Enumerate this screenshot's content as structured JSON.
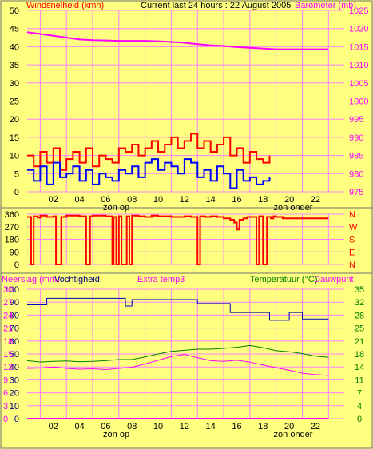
{
  "header": {
    "wind_label": "Windsnelheid (kmh)",
    "title": "Current last 24 hours : 22 August 2005",
    "baro_label": "Barometer (mb)"
  },
  "bottom_header": {
    "rain_label": "Neerslag (mm)",
    "humidity_label": "Vochtigheid",
    "extra_label": "Extra temp3",
    "temp_label": "Temperatuur (°C)",
    "dew_label": "Dauwpunt"
  },
  "x_axis": {
    "ticks": [
      "02",
      "04",
      "06",
      "08",
      "10",
      "12",
      "14",
      "16",
      "18",
      "20",
      "22"
    ],
    "sunrise_label": "zon op",
    "sunset_label": "zon onder"
  },
  "colors": {
    "background": "#ffff80",
    "grid": "#ff80ff",
    "wind_gust": "#ff0000",
    "wind_avg": "#0000ff",
    "barometer": "#ff00ff",
    "wind_dir": "#ff0000",
    "humidity": "#0000c0",
    "temperature": "#008000",
    "dewpoint": "#ff00ff",
    "rain": "#ff00ff"
  },
  "chart_data": [
    {
      "type": "line",
      "title": "Current last 24 hours : 22 August 2005",
      "xlabel": "",
      "ylabel": "Windsnelheid (kmh)",
      "x_ticks": [
        "02",
        "04",
        "06",
        "08",
        "10",
        "12",
        "14",
        "16",
        "18",
        "20",
        "22"
      ],
      "ylim": [
        0,
        50
      ],
      "y_ticks": [
        "0",
        "5",
        "10",
        "15",
        "20",
        "25",
        "30",
        "35",
        "40",
        "45",
        "50"
      ],
      "y2_label": "Barometer (mb)",
      "y2lim": [
        975,
        1025
      ],
      "y2_ticks": [
        "975",
        "980",
        "985",
        "990",
        "995",
        "1000",
        "1005",
        "1010",
        "1015",
        "1020",
        "1025"
      ],
      "series": [
        {
          "axis": "y2",
          "x": [
            0,
            1,
            2,
            3,
            4,
            5,
            6,
            7,
            8,
            9,
            10,
            11,
            12,
            13,
            14,
            15,
            16,
            17,
            18,
            19,
            20,
            21,
            22,
            23
          ],
          "values": [
            1019,
            1018.5,
            1018,
            1017.5,
            1017,
            1016.8,
            1016.7,
            1016.6,
            1016.6,
            1016.6,
            1016.5,
            1016.3,
            1016.1,
            1015.7,
            1015.4,
            1015.2,
            1014.9,
            1014.7,
            1014.5,
            1014.3,
            1014.3,
            1014.3,
            1014.3,
            1014.3
          ]
        },
        {
          "x": [
            0,
            0.5,
            1,
            1.5,
            2,
            2.5,
            3,
            3.5,
            4,
            4.5,
            5,
            5.5,
            6,
            6.5,
            7,
            7.5,
            8,
            8.5,
            9,
            9.5,
            10,
            10.5,
            11,
            11.5,
            12,
            12.5,
            13,
            13.5,
            14,
            14.5,
            15,
            15.5,
            16,
            16.5,
            17,
            17.5,
            18,
            18.5
          ],
          "values": [
            10,
            7,
            11,
            8,
            12,
            6,
            9,
            11,
            8,
            12,
            7,
            10,
            9,
            8,
            12,
            11,
            13,
            10,
            12,
            14,
            11,
            13,
            15,
            12,
            14,
            16,
            12,
            14,
            11,
            13,
            15,
            10,
            12,
            8,
            11,
            9,
            8,
            10
          ]
        },
        {
          "x": [
            0,
            0.5,
            1,
            1.5,
            2,
            2.5,
            3,
            3.5,
            4,
            4.5,
            5,
            5.5,
            6,
            6.5,
            7,
            7.5,
            8,
            8.5,
            9,
            9.5,
            10,
            10.5,
            11,
            11.5,
            12,
            12.5,
            13,
            13.5,
            14,
            14.5,
            15,
            15.5,
            16,
            16.5,
            17,
            17.5,
            18,
            18.5
          ],
          "values": [
            6,
            3,
            7,
            2,
            8,
            4,
            5,
            7,
            3,
            6,
            2,
            5,
            4,
            3,
            6,
            5,
            7,
            4,
            8,
            9,
            6,
            8,
            7,
            5,
            9,
            8,
            4,
            6,
            3,
            7,
            5,
            1,
            6,
            3,
            4,
            2,
            3,
            4
          ]
        }
      ]
    },
    {
      "type": "line",
      "xlabel": "",
      "ylabel": "",
      "ylim": [
        0,
        360
      ],
      "y_ticks": [
        "0",
        "90",
        "180",
        "270",
        "360"
      ],
      "y2_ticks": [
        "N",
        "E",
        "S",
        "W",
        "N"
      ],
      "series": [
        {
          "x": [
            0,
            0.3,
            0.5,
            0.8,
            1,
            1.5,
            2,
            2.2,
            2.4,
            2.6,
            3,
            4,
            4.5,
            4.6,
            4.8,
            5,
            6,
            6.5,
            6.6,
            6.8,
            7,
            7.2,
            7.4,
            7.6,
            7.8,
            8,
            8.5,
            9,
            9.5,
            10,
            11,
            12,
            12.5,
            13,
            13.2,
            13.4,
            13.6,
            14,
            14.5,
            15,
            15.5,
            15.8,
            16,
            16.2,
            16.5,
            16.8,
            17,
            17.5,
            17.7,
            17.9,
            18,
            18.3,
            18.6,
            18.8,
            19,
            19.5,
            20,
            21,
            22,
            23
          ],
          "values": [
            340,
            0,
            345,
            335,
            350,
            340,
            345,
            0,
            0,
            340,
            350,
            345,
            0,
            0,
            345,
            350,
            345,
            0,
            340,
            0,
            345,
            0,
            0,
            345,
            0,
            350,
            345,
            340,
            350,
            345,
            340,
            345,
            340,
            0,
            345,
            345,
            340,
            345,
            340,
            330,
            320,
            300,
            250,
            320,
            330,
            340,
            340,
            0,
            345,
            345,
            0,
            340,
            330,
            345,
            340,
            330,
            330,
            330,
            330,
            330
          ]
        }
      ]
    },
    {
      "type": "line",
      "xlabel": "",
      "ylabel": "Neerslag (mm)",
      "ylim": [
        0,
        100
      ],
      "y_ticks": [
        "0",
        "10",
        "20",
        "30",
        "40",
        "50",
        "60",
        "70",
        "80",
        "90",
        "100"
      ],
      "y_ticks_2": [
        "0",
        "3",
        "6",
        "9",
        "12",
        "15",
        "18",
        "21",
        "24",
        "27",
        "30"
      ],
      "y2_label": "Temperatuur (°C)",
      "y2lim": [
        0,
        35
      ],
      "y2_ticks": [
        "0",
        "4",
        "7",
        "11",
        "14",
        "18",
        "21",
        "25",
        "28",
        "32",
        "35"
      ],
      "series": [
        {
          "name": "Vochtigheid",
          "x": [
            0,
            1,
            1.5,
            2,
            3,
            4,
            5,
            6,
            7,
            7.5,
            8,
            9,
            10,
            11,
            12,
            13,
            14,
            15,
            15.5,
            16,
            17,
            17.5,
            18,
            18.5,
            19,
            20,
            20.5,
            21,
            22,
            23
          ],
          "values": [
            88,
            88,
            93,
            93,
            93,
            93,
            93,
            93,
            93,
            87,
            92,
            92,
            92,
            92,
            92,
            89,
            89,
            89,
            82,
            82,
            82,
            82,
            82,
            76,
            76,
            82,
            82,
            77,
            77,
            77
          ]
        },
        {
          "name": "Temperatuur (°C)",
          "axis": "y2",
          "x": [
            0,
            1,
            2,
            3,
            4,
            5,
            6,
            7,
            8,
            9,
            10,
            11,
            12,
            13,
            14,
            15,
            16,
            17,
            18,
            19,
            20,
            21,
            22,
            23
          ],
          "values": [
            15.7,
            15.3,
            15.5,
            15.6,
            15.4,
            15.5,
            15.7,
            16,
            16,
            16.7,
            17.5,
            18.2,
            18.5,
            18.8,
            18.8,
            19,
            19.3,
            19.8,
            19.2,
            18.4,
            18.1,
            17.6,
            16.9,
            16.6
          ]
        },
        {
          "name": "Dauwpunt",
          "axis": "y2",
          "x": [
            0,
            1,
            2,
            3,
            4,
            5,
            6,
            7,
            8,
            9,
            10,
            11,
            12,
            13,
            14,
            15,
            16,
            17,
            18,
            19,
            20,
            21,
            22,
            23
          ],
          "values": [
            13.6,
            13.7,
            14,
            13.6,
            13.4,
            13.5,
            13.3,
            13.6,
            13.9,
            14.8,
            15.8,
            16.8,
            17.4,
            16.5,
            15.7,
            15.5,
            15.8,
            15.3,
            14.5,
            13.8,
            13.1,
            12.3,
            11.9,
            11.7
          ]
        },
        {
          "name": "Neerslag (mm)",
          "x": [
            0,
            23
          ],
          "values": [
            0,
            0
          ]
        }
      ]
    }
  ]
}
